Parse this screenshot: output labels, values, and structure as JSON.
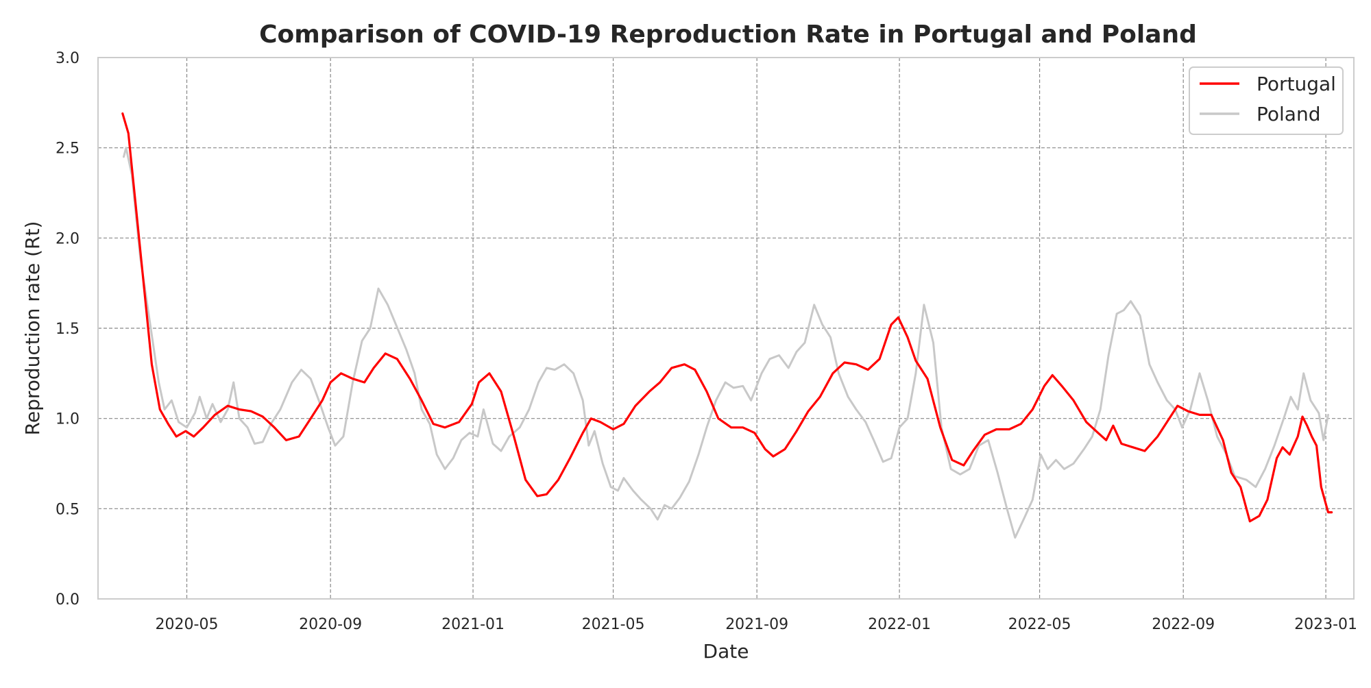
{
  "chart_data": {
    "type": "line",
    "title": "Comparison of COVID-19 Reproduction Rate in Portugal and Poland",
    "xlabel": "Date",
    "ylabel": "Reproduction rate (Rt)",
    "xlim": [
      "2020-02-15",
      "2023-01-25"
    ],
    "ylim": [
      0,
      3.0
    ],
    "x_ticks": [
      "2020-05-01",
      "2020-09-01",
      "2021-01-01",
      "2021-05-01",
      "2021-09-01",
      "2022-01-01",
      "2022-05-01",
      "2022-09-01",
      "2023-01-01"
    ],
    "x_tick_labels": [
      "2020-05",
      "2020-09",
      "2021-01",
      "2021-05",
      "2021-09",
      "2022-01",
      "2022-05",
      "2022-09",
      "2023-01"
    ],
    "y_ticks": [
      0.0,
      0.5,
      1.0,
      1.5,
      2.0,
      2.5,
      3.0
    ],
    "y_tick_labels": [
      "0.0",
      "0.5",
      "1.0",
      "1.5",
      "2.0",
      "2.5",
      "3.0"
    ],
    "grid": true,
    "legend_position": "top-right",
    "series": [
      {
        "name": "Portugal",
        "color": "#ff0000",
        "points": [
          [
            "2020-03-07",
            2.69
          ],
          [
            "2020-03-12",
            2.58
          ],
          [
            "2020-03-18",
            2.2
          ],
          [
            "2020-03-25",
            1.75
          ],
          [
            "2020-04-01",
            1.3
          ],
          [
            "2020-04-08",
            1.05
          ],
          [
            "2020-04-15",
            0.97
          ],
          [
            "2020-04-22",
            0.9
          ],
          [
            "2020-04-30",
            0.93
          ],
          [
            "2020-05-07",
            0.9
          ],
          [
            "2020-05-15",
            0.95
          ],
          [
            "2020-05-25",
            1.02
          ],
          [
            "2020-06-05",
            1.07
          ],
          [
            "2020-06-15",
            1.05
          ],
          [
            "2020-06-25",
            1.04
          ],
          [
            "2020-07-05",
            1.01
          ],
          [
            "2020-07-15",
            0.95
          ],
          [
            "2020-07-25",
            0.88
          ],
          [
            "2020-08-05",
            0.9
          ],
          [
            "2020-08-15",
            1.0
          ],
          [
            "2020-08-25",
            1.1
          ],
          [
            "2020-09-01",
            1.2
          ],
          [
            "2020-09-10",
            1.25
          ],
          [
            "2020-09-20",
            1.22
          ],
          [
            "2020-09-30",
            1.2
          ],
          [
            "2020-10-08",
            1.28
          ],
          [
            "2020-10-18",
            1.36
          ],
          [
            "2020-10-28",
            1.33
          ],
          [
            "2020-11-08",
            1.22
          ],
          [
            "2020-11-18",
            1.1
          ],
          [
            "2020-11-28",
            0.97
          ],
          [
            "2020-12-08",
            0.95
          ],
          [
            "2020-12-20",
            0.98
          ],
          [
            "2020-12-31",
            1.08
          ],
          [
            "2021-01-06",
            1.2
          ],
          [
            "2021-01-15",
            1.25
          ],
          [
            "2021-01-25",
            1.15
          ],
          [
            "2021-02-05",
            0.9
          ],
          [
            "2021-02-15",
            0.66
          ],
          [
            "2021-02-25",
            0.57
          ],
          [
            "2021-03-05",
            0.58
          ],
          [
            "2021-03-15",
            0.66
          ],
          [
            "2021-03-25",
            0.78
          ],
          [
            "2021-04-05",
            0.92
          ],
          [
            "2021-04-12",
            1.0
          ],
          [
            "2021-04-20",
            0.98
          ],
          [
            "2021-05-01",
            0.94
          ],
          [
            "2021-05-10",
            0.97
          ],
          [
            "2021-05-20",
            1.07
          ],
          [
            "2021-06-01",
            1.15
          ],
          [
            "2021-06-10",
            1.2
          ],
          [
            "2021-06-20",
            1.28
          ],
          [
            "2021-07-01",
            1.3
          ],
          [
            "2021-07-10",
            1.27
          ],
          [
            "2021-07-20",
            1.15
          ],
          [
            "2021-07-30",
            1.0
          ],
          [
            "2021-08-10",
            0.95
          ],
          [
            "2021-08-20",
            0.95
          ],
          [
            "2021-08-30",
            0.92
          ],
          [
            "2021-09-08",
            0.83
          ],
          [
            "2021-09-15",
            0.79
          ],
          [
            "2021-09-25",
            0.83
          ],
          [
            "2021-10-05",
            0.93
          ],
          [
            "2021-10-15",
            1.04
          ],
          [
            "2021-10-25",
            1.12
          ],
          [
            "2021-11-05",
            1.25
          ],
          [
            "2021-11-15",
            1.31
          ],
          [
            "2021-11-25",
            1.3
          ],
          [
            "2021-12-05",
            1.27
          ],
          [
            "2021-12-15",
            1.33
          ],
          [
            "2021-12-25",
            1.52
          ],
          [
            "2021-12-31",
            1.56
          ],
          [
            "2022-01-08",
            1.45
          ],
          [
            "2022-01-15",
            1.32
          ],
          [
            "2022-01-25",
            1.22
          ],
          [
            "2022-02-05",
            0.95
          ],
          [
            "2022-02-15",
            0.77
          ],
          [
            "2022-02-25",
            0.74
          ],
          [
            "2022-03-05",
            0.82
          ],
          [
            "2022-03-15",
            0.91
          ],
          [
            "2022-03-25",
            0.94
          ],
          [
            "2022-04-05",
            0.94
          ],
          [
            "2022-04-15",
            0.97
          ],
          [
            "2022-04-25",
            1.05
          ],
          [
            "2022-05-05",
            1.18
          ],
          [
            "2022-05-12",
            1.24
          ],
          [
            "2022-05-20",
            1.18
          ],
          [
            "2022-05-30",
            1.1
          ],
          [
            "2022-06-10",
            0.98
          ],
          [
            "2022-06-20",
            0.92
          ],
          [
            "2022-06-27",
            0.88
          ],
          [
            "2022-07-03",
            0.96
          ],
          [
            "2022-07-10",
            0.86
          ],
          [
            "2022-07-20",
            0.84
          ],
          [
            "2022-07-30",
            0.82
          ],
          [
            "2022-08-10",
            0.9
          ],
          [
            "2022-08-20",
            1.0
          ],
          [
            "2022-08-27",
            1.07
          ],
          [
            "2022-09-05",
            1.04
          ],
          [
            "2022-09-15",
            1.02
          ],
          [
            "2022-09-25",
            1.02
          ],
          [
            "2022-10-05",
            0.88
          ],
          [
            "2022-10-12",
            0.7
          ],
          [
            "2022-10-20",
            0.62
          ],
          [
            "2022-10-28",
            0.43
          ],
          [
            "2022-11-05",
            0.46
          ],
          [
            "2022-11-12",
            0.55
          ],
          [
            "2022-11-20",
            0.78
          ],
          [
            "2022-11-25",
            0.84
          ],
          [
            "2022-12-01",
            0.8
          ],
          [
            "2022-12-08",
            0.9
          ],
          [
            "2022-12-12",
            1.01
          ],
          [
            "2022-12-16",
            0.96
          ],
          [
            "2022-12-20",
            0.9
          ],
          [
            "2022-12-24",
            0.85
          ],
          [
            "2022-12-28",
            0.62
          ],
          [
            "2023-01-03",
            0.48
          ],
          [
            "2023-01-06",
            0.48
          ]
        ]
      },
      {
        "name": "Poland",
        "color": "#c8c8c8",
        "points": [
          [
            "2020-03-08",
            2.45
          ],
          [
            "2020-03-10",
            2.5
          ],
          [
            "2020-03-15",
            2.35
          ],
          [
            "2020-03-22",
            1.9
          ],
          [
            "2020-03-30",
            1.55
          ],
          [
            "2020-04-07",
            1.2
          ],
          [
            "2020-04-12",
            1.05
          ],
          [
            "2020-04-18",
            1.1
          ],
          [
            "2020-04-24",
            0.98
          ],
          [
            "2020-05-01",
            0.95
          ],
          [
            "2020-05-08",
            1.03
          ],
          [
            "2020-05-12",
            1.12
          ],
          [
            "2020-05-18",
            1.0
          ],
          [
            "2020-05-23",
            1.08
          ],
          [
            "2020-05-30",
            0.98
          ],
          [
            "2020-06-05",
            1.05
          ],
          [
            "2020-06-10",
            1.2
          ],
          [
            "2020-06-15",
            1.0
          ],
          [
            "2020-06-22",
            0.95
          ],
          [
            "2020-06-28",
            0.86
          ],
          [
            "2020-07-05",
            0.87
          ],
          [
            "2020-07-12",
            0.97
          ],
          [
            "2020-07-20",
            1.05
          ],
          [
            "2020-07-30",
            1.2
          ],
          [
            "2020-08-07",
            1.27
          ],
          [
            "2020-08-15",
            1.22
          ],
          [
            "2020-08-22",
            1.1
          ],
          [
            "2020-08-30",
            0.95
          ],
          [
            "2020-09-05",
            0.85
          ],
          [
            "2020-09-12",
            0.9
          ],
          [
            "2020-09-20",
            1.2
          ],
          [
            "2020-09-28",
            1.43
          ],
          [
            "2020-10-05",
            1.5
          ],
          [
            "2020-10-12",
            1.72
          ],
          [
            "2020-10-20",
            1.63
          ],
          [
            "2020-10-27",
            1.52
          ],
          [
            "2020-11-05",
            1.38
          ],
          [
            "2020-11-12",
            1.25
          ],
          [
            "2020-11-18",
            1.05
          ],
          [
            "2020-11-25",
            0.97
          ],
          [
            "2020-12-01",
            0.8
          ],
          [
            "2020-12-08",
            0.72
          ],
          [
            "2020-12-15",
            0.78
          ],
          [
            "2020-12-22",
            0.88
          ],
          [
            "2020-12-29",
            0.92
          ],
          [
            "2021-01-05",
            0.9
          ],
          [
            "2021-01-10",
            1.05
          ],
          [
            "2021-01-18",
            0.86
          ],
          [
            "2021-01-25",
            0.82
          ],
          [
            "2021-02-01",
            0.9
          ],
          [
            "2021-02-10",
            0.95
          ],
          [
            "2021-02-18",
            1.05
          ],
          [
            "2021-02-26",
            1.2
          ],
          [
            "2021-03-05",
            1.28
          ],
          [
            "2021-03-12",
            1.27
          ],
          [
            "2021-03-20",
            1.3
          ],
          [
            "2021-03-28",
            1.25
          ],
          [
            "2021-04-05",
            1.1
          ],
          [
            "2021-04-10",
            0.85
          ],
          [
            "2021-04-15",
            0.93
          ],
          [
            "2021-04-22",
            0.75
          ],
          [
            "2021-04-29",
            0.62
          ],
          [
            "2021-05-05",
            0.6
          ],
          [
            "2021-05-10",
            0.67
          ],
          [
            "2021-05-18",
            0.6
          ],
          [
            "2021-05-25",
            0.55
          ],
          [
            "2021-06-02",
            0.5
          ],
          [
            "2021-06-08",
            0.44
          ],
          [
            "2021-06-14",
            0.52
          ],
          [
            "2021-06-20",
            0.5
          ],
          [
            "2021-06-27",
            0.56
          ],
          [
            "2021-07-05",
            0.65
          ],
          [
            "2021-07-13",
            0.8
          ],
          [
            "2021-07-20",
            0.95
          ],
          [
            "2021-07-28",
            1.1
          ],
          [
            "2021-08-05",
            1.2
          ],
          [
            "2021-08-12",
            1.17
          ],
          [
            "2021-08-20",
            1.18
          ],
          [
            "2021-08-27",
            1.1
          ],
          [
            "2021-09-05",
            1.25
          ],
          [
            "2021-09-12",
            1.33
          ],
          [
            "2021-09-20",
            1.35
          ],
          [
            "2021-09-28",
            1.28
          ],
          [
            "2021-10-05",
            1.37
          ],
          [
            "2021-10-12",
            1.42
          ],
          [
            "2021-10-20",
            1.63
          ],
          [
            "2021-10-27",
            1.52
          ],
          [
            "2021-11-03",
            1.45
          ],
          [
            "2021-11-10",
            1.25
          ],
          [
            "2021-11-18",
            1.12
          ],
          [
            "2021-11-25",
            1.05
          ],
          [
            "2021-12-03",
            0.98
          ],
          [
            "2021-12-10",
            0.88
          ],
          [
            "2021-12-18",
            0.76
          ],
          [
            "2021-12-25",
            0.78
          ],
          [
            "2022-01-01",
            0.95
          ],
          [
            "2022-01-08",
            1.0
          ],
          [
            "2022-01-15",
            1.25
          ],
          [
            "2022-01-22",
            1.63
          ],
          [
            "2022-01-30",
            1.42
          ],
          [
            "2022-02-06",
            0.95
          ],
          [
            "2022-02-14",
            0.72
          ],
          [
            "2022-02-22",
            0.69
          ],
          [
            "2022-03-02",
            0.72
          ],
          [
            "2022-03-10",
            0.85
          ],
          [
            "2022-03-18",
            0.88
          ],
          [
            "2022-03-26",
            0.7
          ],
          [
            "2022-04-03",
            0.5
          ],
          [
            "2022-04-10",
            0.34
          ],
          [
            "2022-04-18",
            0.45
          ],
          [
            "2022-04-25",
            0.55
          ],
          [
            "2022-05-02",
            0.8
          ],
          [
            "2022-05-08",
            0.72
          ],
          [
            "2022-05-15",
            0.77
          ],
          [
            "2022-05-22",
            0.72
          ],
          [
            "2022-05-30",
            0.75
          ],
          [
            "2022-06-08",
            0.83
          ],
          [
            "2022-06-15",
            0.9
          ],
          [
            "2022-06-22",
            1.05
          ],
          [
            "2022-06-29",
            1.35
          ],
          [
            "2022-07-06",
            1.58
          ],
          [
            "2022-07-12",
            1.6
          ],
          [
            "2022-07-18",
            1.65
          ],
          [
            "2022-07-26",
            1.57
          ],
          [
            "2022-08-03",
            1.3
          ],
          [
            "2022-08-10",
            1.2
          ],
          [
            "2022-08-18",
            1.1
          ],
          [
            "2022-08-25",
            1.05
          ],
          [
            "2022-08-31",
            0.95
          ],
          [
            "2022-09-07",
            1.05
          ],
          [
            "2022-09-15",
            1.25
          ],
          [
            "2022-09-22",
            1.1
          ],
          [
            "2022-09-30",
            0.9
          ],
          [
            "2022-10-08",
            0.8
          ],
          [
            "2022-10-15",
            0.68
          ],
          [
            "2022-10-25",
            0.66
          ],
          [
            "2022-11-02",
            0.62
          ],
          [
            "2022-11-10",
            0.72
          ],
          [
            "2022-11-18",
            0.85
          ],
          [
            "2022-11-26",
            1.0
          ],
          [
            "2022-12-02",
            1.12
          ],
          [
            "2022-12-08",
            1.05
          ],
          [
            "2022-12-13",
            1.25
          ],
          [
            "2022-12-19",
            1.1
          ],
          [
            "2022-12-26",
            1.03
          ],
          [
            "2022-12-30",
            0.88
          ],
          [
            "2023-01-03",
            1.02
          ]
        ]
      }
    ]
  }
}
